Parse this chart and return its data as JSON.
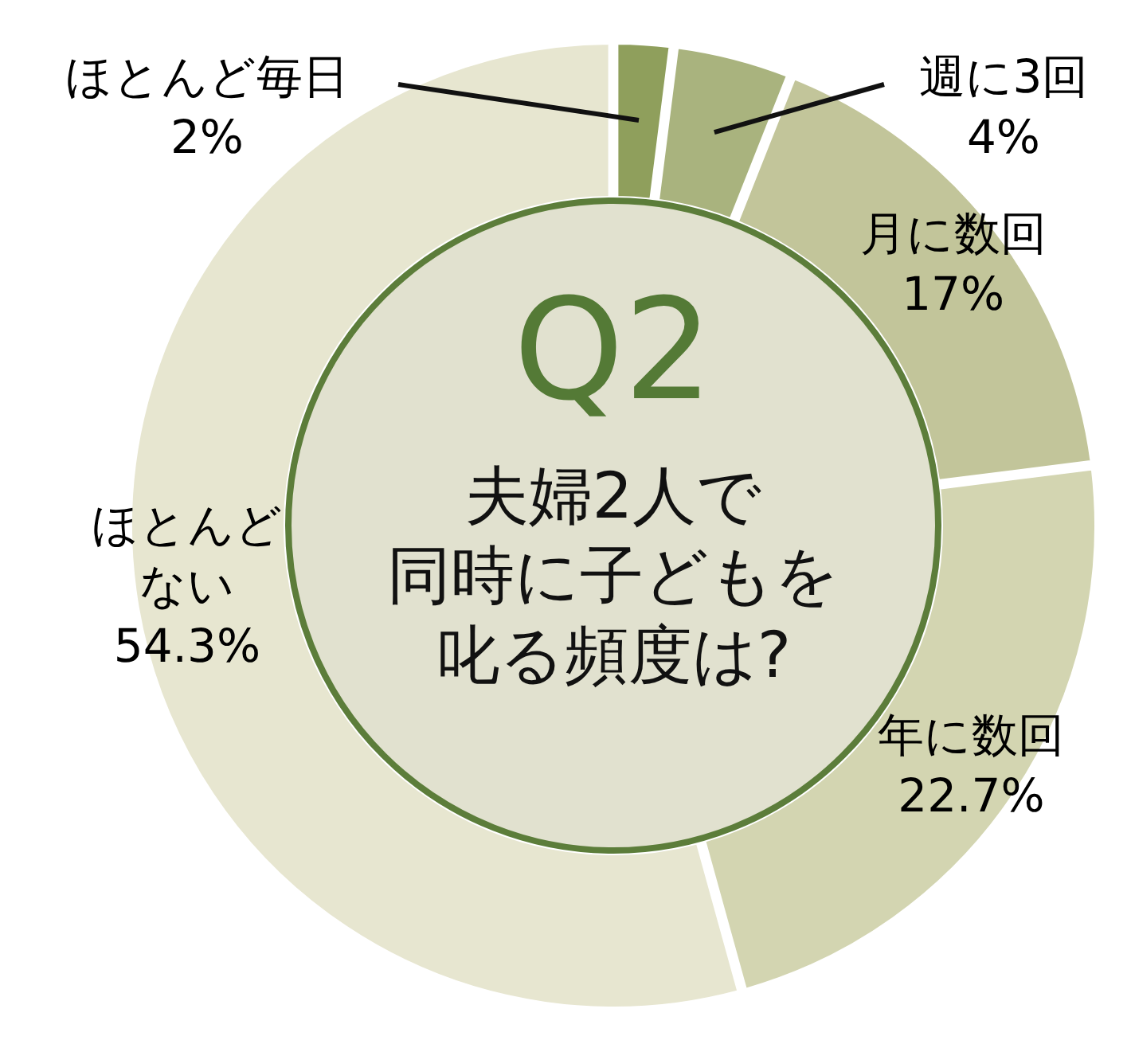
{
  "chart_data": {
    "type": "donut",
    "title": "Q2",
    "subtitle": "夫婦2人で同時に子どもを叱る頻度は?",
    "categories": [
      "ほとんど毎日",
      "週に3回",
      "月に数回",
      "年に数回",
      "ほとんどない"
    ],
    "values": [
      2,
      4,
      17,
      22.7,
      54.3
    ],
    "value_labels": [
      "2%",
      "4%",
      "17%",
      "22.7%",
      "54.3%"
    ],
    "colors": [
      "#8f9f5c",
      "#a9b37e",
      "#c2c59a",
      "#d3d5b1",
      "#e7e6d0"
    ]
  }
}
